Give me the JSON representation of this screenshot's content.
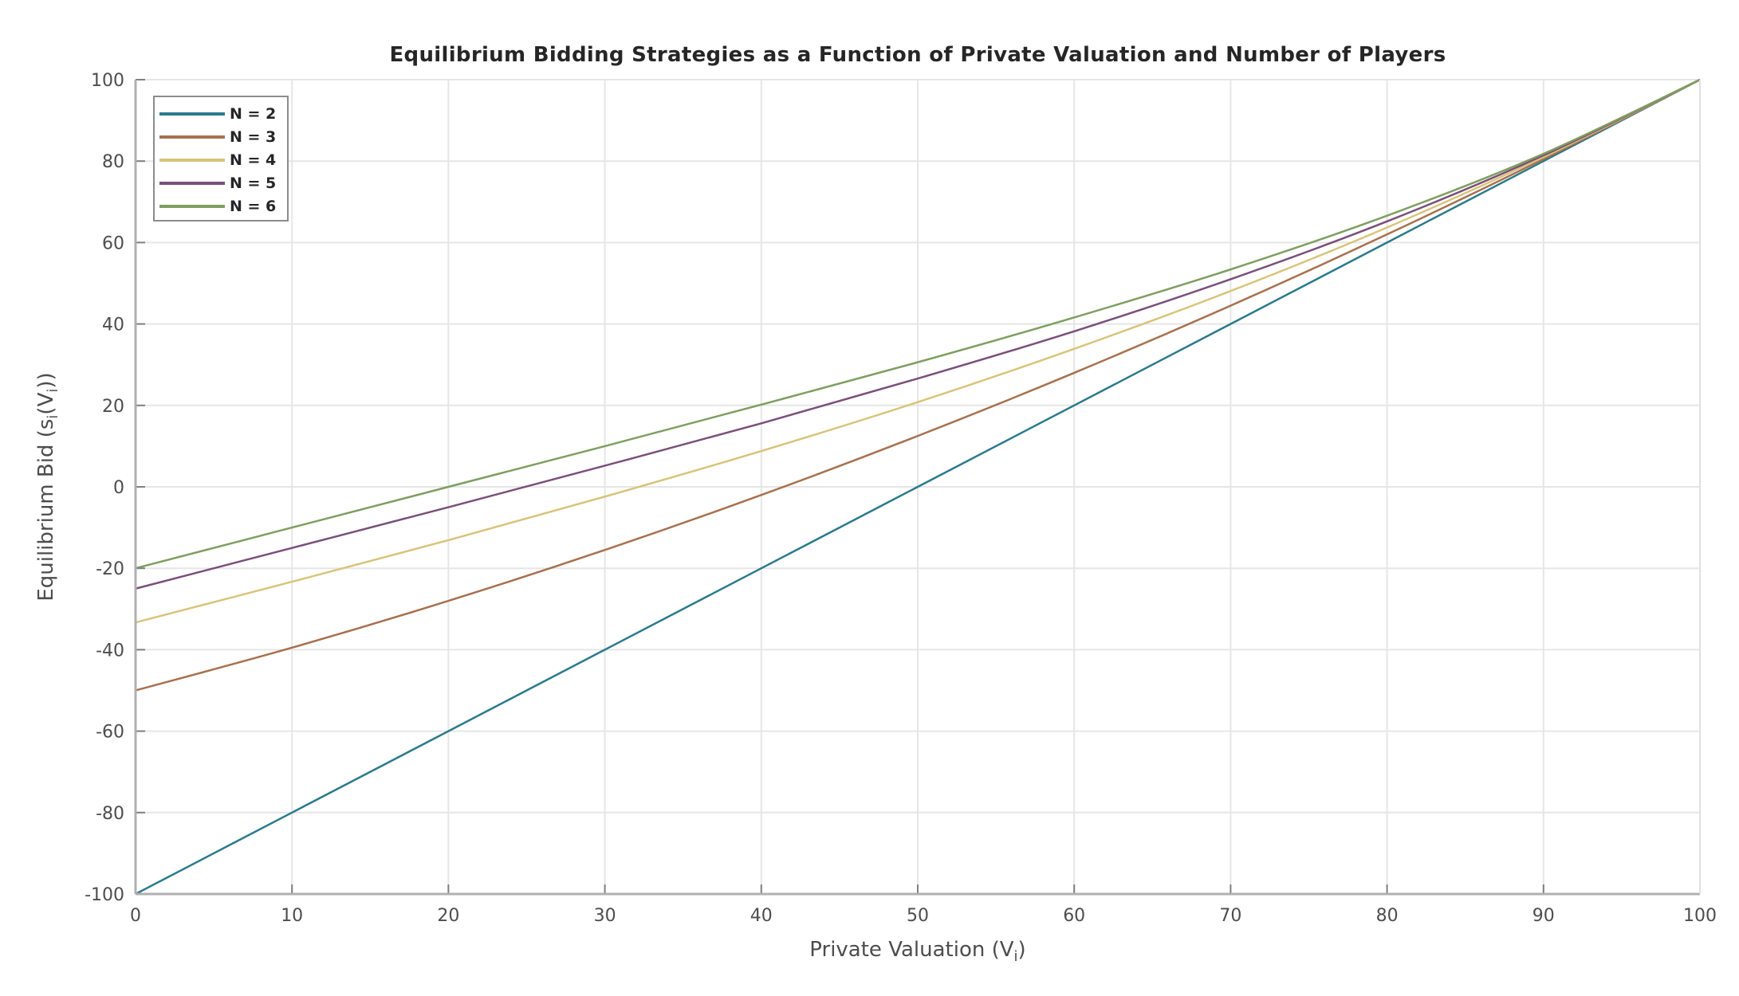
{
  "chart_data": {
    "type": "line",
    "title": "Equilibrium Bidding Strategies as a Function of Private Valuation and Number of Players",
    "xlabel": "Private Valuation (V_i)",
    "ylabel": "Equilibrium Bid (s_i(V_i))",
    "xlim": [
      0,
      100
    ],
    "ylim": [
      -100,
      100
    ],
    "x_ticks": [
      0,
      10,
      20,
      30,
      40,
      50,
      60,
      70,
      80,
      90,
      100
    ],
    "y_ticks": [
      -100,
      -80,
      -60,
      -40,
      -20,
      0,
      20,
      40,
      60,
      80,
      100
    ],
    "grid": true,
    "legend_position": "upper left",
    "x": [
      0,
      10,
      20,
      30,
      40,
      50,
      60,
      70,
      80,
      90,
      100
    ],
    "series": [
      {
        "name": "N = 2",
        "color": "#0072bd",
        "values": [
          -100,
          -80,
          -60,
          -40,
          -20,
          0,
          20,
          40,
          60,
          80,
          100
        ]
      },
      {
        "name": "N = 3",
        "color": "#d95319",
        "values": [
          -50,
          -39.5,
          -28,
          -15.5,
          -2,
          12.5,
          28,
          44.5,
          62,
          80.5,
          100
        ]
      },
      {
        "name": "N = 4",
        "color": "#edb120",
        "values": [
          -33.3,
          -23.3,
          -13.1,
          -2.4,
          8.8,
          20.8,
          33.9,
          48.1,
          63.7,
          81.0,
          100
        ]
      },
      {
        "name": "N = 5",
        "color": "#7e2f8e",
        "values": [
          -25,
          -15.0,
          -5.0,
          5.2,
          15.6,
          26.6,
          38.2,
          51.0,
          65.2,
          81.4,
          100
        ]
      },
      {
        "name": "N = 6",
        "color": "#77ac30",
        "values": [
          -20,
          -10,
          0.0,
          10.0,
          20.2,
          30.6,
          41.6,
          53.4,
          66.6,
          81.8,
          100
        ]
      }
    ]
  },
  "title": "Equilibrium Bidding Strategies as a Function of Private Valuation and Number of Players",
  "legend": [
    {
      "label": "N = 2",
      "color": "#2a7a8c"
    },
    {
      "label": "N = 3",
      "color": "#a8704e"
    },
    {
      "label": "N = 4",
      "color": "#d8c47a"
    },
    {
      "label": "N = 5",
      "color": "#7a4f7a"
    },
    {
      "label": "N = 6",
      "color": "#7f9e60"
    }
  ],
  "axes": {
    "xlabel_main": "Private Valuation (V",
    "xlabel_sub": "i",
    "xlabel_end": ")",
    "ylabel_main": "Equilibrium Bid (s",
    "ylabel_sub1": "i",
    "ylabel_mid": "(V",
    "ylabel_sub2": "i",
    "ylabel_end": "))"
  }
}
